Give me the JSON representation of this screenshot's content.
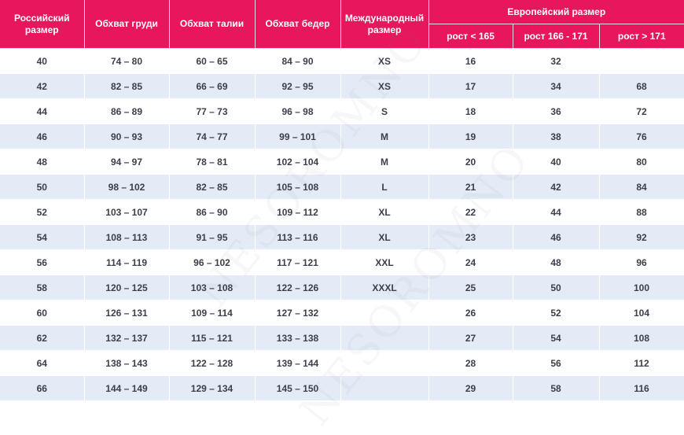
{
  "header": {
    "ru_size": "Российский размер",
    "chest": "Обхват груди",
    "waist": "Обхват талии",
    "hips": "Обхват бедер",
    "intl": "Международный размер",
    "eu": "Европейский размер",
    "eu_sub": [
      "рост < 165",
      "рост 166 - 171",
      "рост > 171"
    ]
  },
  "rows": [
    [
      "40",
      "74 – 80",
      "60 – 65",
      "84 – 90",
      "XS",
      "16",
      "32",
      ""
    ],
    [
      "42",
      "82 – 85",
      "66 – 69",
      "92 – 95",
      "XS",
      "17",
      "34",
      "68"
    ],
    [
      "44",
      "86 – 89",
      "77 – 73",
      "96 – 98",
      "S",
      "18",
      "36",
      "72"
    ],
    [
      "46",
      "90 – 93",
      "74 – 77",
      "99 – 101",
      "M",
      "19",
      "38",
      "76"
    ],
    [
      "48",
      "94 – 97",
      "78 – 81",
      "102 – 104",
      "M",
      "20",
      "40",
      "80"
    ],
    [
      "50",
      "98 – 102",
      "82 – 85",
      "105 – 108",
      "L",
      "21",
      "42",
      "84"
    ],
    [
      "52",
      "103 – 107",
      "86 – 90",
      "109 – 112",
      "XL",
      "22",
      "44",
      "88"
    ],
    [
      "54",
      "108 – 113",
      "91 – 95",
      "113 – 116",
      "XL",
      "23",
      "46",
      "92"
    ],
    [
      "56",
      "114 – 119",
      "96 – 102",
      "117 – 121",
      "XXL",
      "24",
      "48",
      "96"
    ],
    [
      "58",
      "120 – 125",
      "103 – 108",
      "122 – 126",
      "XXXL",
      "25",
      "50",
      "100"
    ],
    [
      "60",
      "126 – 131",
      "109 – 114",
      "127 – 132",
      "",
      "26",
      "52",
      "104"
    ],
    [
      "62",
      "132 – 137",
      "115 – 121",
      "133 – 138",
      "",
      "27",
      "54",
      "108"
    ],
    [
      "64",
      "138 – 143",
      "122 – 128",
      "139 – 144",
      "",
      "28",
      "56",
      "112"
    ],
    [
      "66",
      "144 – 149",
      "129 – 134",
      "145 – 150",
      "",
      "29",
      "58",
      "116"
    ]
  ],
  "colors": {
    "header_bg": "#e8175d",
    "row_alt_bg": "#e3ebf7",
    "text": "#3a3f4a"
  }
}
